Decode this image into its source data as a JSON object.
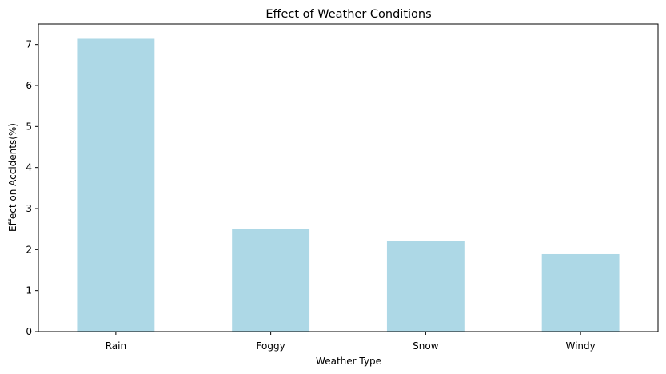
{
  "chart_data": {
    "type": "bar",
    "title": "Effect of Weather Conditions",
    "xlabel": "Weather Type",
    "ylabel": "Effect on Accidents(%)",
    "categories": [
      "Rain",
      "Foggy",
      "Snow",
      "Windy"
    ],
    "values": [
      7.14,
      2.51,
      2.22,
      1.89
    ],
    "ylim": [
      0,
      7.5
    ],
    "yticks": [
      0,
      1,
      2,
      3,
      4,
      5,
      6,
      7
    ],
    "bar_color": "#add8e6",
    "grid": false,
    "legend": "none"
  }
}
